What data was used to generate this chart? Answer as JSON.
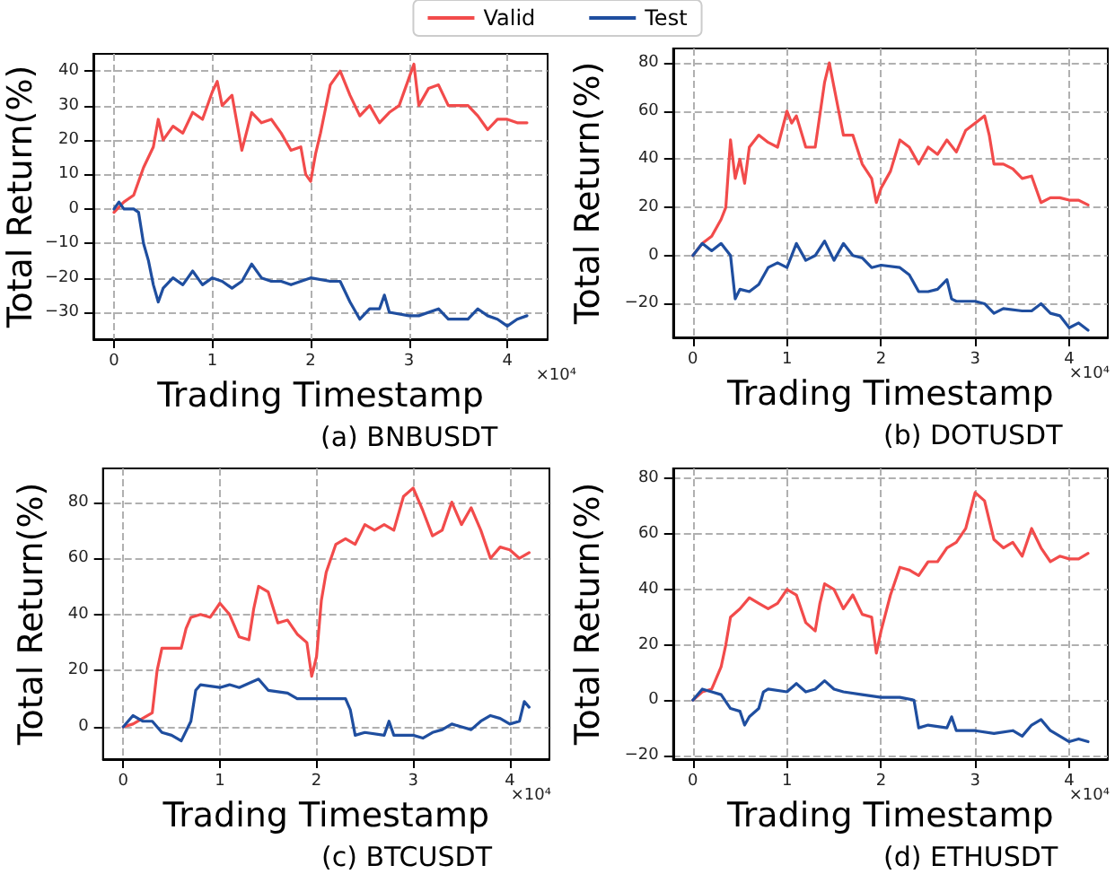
{
  "chart_data": [
    {
      "type": "line",
      "title": "(a) BNBUSDT",
      "xlabel": "Trading Timestamp",
      "ylabel": "Total Return(%)",
      "annotations": [
        "×10⁴"
      ],
      "xlim": [
        -0.21,
        4.41
      ],
      "xticks": [
        0,
        1,
        2,
        3,
        4
      ],
      "ylim": [
        -37.8,
        45
      ],
      "yticks": [
        -30,
        -20,
        -10,
        0,
        10,
        20,
        30,
        40
      ],
      "grid": true,
      "legend": "top",
      "series": [
        {
          "name": "Valid",
          "color": "#f24b4b",
          "x": [
            0,
            0.1,
            0.2,
            0.3,
            0.4,
            0.45,
            0.5,
            0.6,
            0.7,
            0.8,
            0.9,
            1.0,
            1.05,
            1.1,
            1.2,
            1.3,
            1.4,
            1.5,
            1.6,
            1.7,
            1.8,
            1.9,
            1.95,
            2.0,
            2.05,
            2.1,
            2.2,
            2.3,
            2.4,
            2.5,
            2.6,
            2.7,
            2.8,
            2.9,
            3.0,
            3.05,
            3.1,
            3.2,
            3.3,
            3.4,
            3.5,
            3.6,
            3.7,
            3.8,
            3.9,
            4.0,
            4.1,
            4.2
          ],
          "values": [
            -1,
            2,
            4,
            12,
            18,
            26,
            20,
            24,
            22,
            28,
            26,
            34,
            37,
            30,
            33,
            17,
            28,
            25,
            26,
            22,
            17,
            18,
            10,
            8,
            16,
            22,
            36,
            40,
            33,
            27,
            30,
            25,
            28,
            30,
            38,
            42,
            30,
            35,
            36,
            30,
            30,
            30,
            27,
            23,
            26,
            26,
            25,
            25
          ]
        },
        {
          "name": "Test",
          "color": "#1f4e9f",
          "x": [
            0,
            0.05,
            0.1,
            0.2,
            0.25,
            0.3,
            0.35,
            0.4,
            0.45,
            0.5,
            0.6,
            0.7,
            0.8,
            0.9,
            1.0,
            1.1,
            1.2,
            1.3,
            1.4,
            1.5,
            1.6,
            1.7,
            1.8,
            2.0,
            2.2,
            2.3,
            2.4,
            2.5,
            2.6,
            2.7,
            2.75,
            2.8,
            3.0,
            3.1,
            3.3,
            3.4,
            3.6,
            3.7,
            3.8,
            3.9,
            4.0,
            4.1,
            4.2
          ],
          "values": [
            0,
            2,
            0,
            0,
            -1,
            -10,
            -15,
            -22,
            -27,
            -23,
            -20,
            -22,
            -18,
            -22,
            -20,
            -21,
            -23,
            -21,
            -16,
            -20,
            -21,
            -21,
            -22,
            -20,
            -21,
            -21,
            -27,
            -32,
            -29,
            -29,
            -25,
            -30,
            -31,
            -31,
            -29,
            -32,
            -32,
            -29,
            -31,
            -32,
            -34,
            -32,
            -31
          ]
        }
      ]
    },
    {
      "type": "line",
      "title": "(b) DOTUSDT",
      "xlabel": "Trading Timestamp",
      "ylabel": "Total Return(%)",
      "annotations": [
        "×10⁴"
      ],
      "xlim": [
        -0.21,
        4.41
      ],
      "xticks": [
        0,
        1,
        2,
        3,
        4
      ],
      "ylim": [
        -34,
        86
      ],
      "yticks": [
        -20,
        0,
        20,
        40,
        60,
        80
      ],
      "grid": true,
      "series": [
        {
          "color": "#f24b4b",
          "x": [
            0,
            0.1,
            0.2,
            0.3,
            0.35,
            0.4,
            0.45,
            0.5,
            0.55,
            0.6,
            0.7,
            0.8,
            0.9,
            1.0,
            1.05,
            1.1,
            1.2,
            1.3,
            1.4,
            1.45,
            1.5,
            1.6,
            1.7,
            1.8,
            1.9,
            1.95,
            2.0,
            2.1,
            2.2,
            2.3,
            2.4,
            2.5,
            2.6,
            2.7,
            2.8,
            2.9,
            3.0,
            3.1,
            3.15,
            3.2,
            3.3,
            3.4,
            3.5,
            3.6,
            3.7,
            3.8,
            3.9,
            4.0,
            4.1,
            4.2
          ],
          "values": [
            0,
            5,
            8,
            15,
            20,
            48,
            32,
            40,
            30,
            45,
            50,
            47,
            45,
            60,
            55,
            58,
            45,
            45,
            72,
            80,
            70,
            50,
            50,
            38,
            32,
            22,
            28,
            35,
            48,
            45,
            38,
            45,
            42,
            48,
            43,
            52,
            55,
            58,
            50,
            38,
            38,
            36,
            32,
            33,
            22,
            24,
            24,
            23,
            23,
            21
          ]
        },
        {
          "color": "#1f4e9f",
          "x": [
            0,
            0.1,
            0.2,
            0.3,
            0.4,
            0.45,
            0.5,
            0.6,
            0.7,
            0.8,
            0.9,
            1.0,
            1.1,
            1.2,
            1.3,
            1.4,
            1.5,
            1.6,
            1.7,
            1.8,
            1.9,
            2.0,
            2.2,
            2.3,
            2.4,
            2.5,
            2.6,
            2.7,
            2.75,
            2.8,
            3.0,
            3.1,
            3.2,
            3.3,
            3.5,
            3.6,
            3.7,
            3.8,
            3.9,
            4.0,
            4.1,
            4.2
          ],
          "values": [
            0,
            5,
            2,
            5,
            0,
            -18,
            -14,
            -15,
            -12,
            -5,
            -3,
            -5,
            5,
            -2,
            0,
            6,
            -2,
            5,
            0,
            -1,
            -5,
            -4,
            -5,
            -8,
            -15,
            -15,
            -14,
            -10,
            -18,
            -19,
            -19,
            -20,
            -24,
            -22,
            -23,
            -23,
            -20,
            -24,
            -25,
            -30,
            -28,
            -31
          ]
        }
      ]
    },
    {
      "type": "line",
      "title": "(c) BTCUSDT",
      "xlabel": "Trading Timestamp",
      "ylabel": "Total Return(%)",
      "annotations": [
        "×10⁴"
      ],
      "xlim": [
        -0.21,
        4.41
      ],
      "xticks": [
        0,
        1,
        2,
        3,
        4
      ],
      "ylim": [
        -11.5,
        92
      ],
      "yticks": [
        0,
        20,
        40,
        60,
        80
      ],
      "grid": true,
      "series": [
        {
          "color": "#f24b4b",
          "x": [
            0,
            0.1,
            0.2,
            0.3,
            0.35,
            0.4,
            0.5,
            0.6,
            0.65,
            0.7,
            0.8,
            0.9,
            1.0,
            1.1,
            1.2,
            1.3,
            1.35,
            1.4,
            1.5,
            1.6,
            1.7,
            1.8,
            1.9,
            1.95,
            2.0,
            2.05,
            2.1,
            2.2,
            2.3,
            2.4,
            2.5,
            2.6,
            2.7,
            2.8,
            2.9,
            3.0,
            3.1,
            3.2,
            3.3,
            3.4,
            3.5,
            3.6,
            3.7,
            3.8,
            3.9,
            4.0,
            4.1,
            4.2
          ],
          "values": [
            0,
            1,
            3,
            5,
            20,
            28,
            28,
            28,
            35,
            39,
            40,
            39,
            44,
            40,
            32,
            31,
            42,
            50,
            48,
            37,
            38,
            33,
            30,
            18,
            25,
            45,
            55,
            65,
            67,
            65,
            72,
            70,
            72,
            70,
            82,
            85,
            77,
            68,
            70,
            80,
            72,
            78,
            70,
            60,
            64,
            63,
            60,
            62
          ]
        },
        {
          "color": "#1f4e9f",
          "x": [
            0,
            0.1,
            0.2,
            0.3,
            0.4,
            0.5,
            0.6,
            0.7,
            0.75,
            0.8,
            1.0,
            1.1,
            1.2,
            1.4,
            1.5,
            1.7,
            1.8,
            2.0,
            2.2,
            2.3,
            2.35,
            2.4,
            2.5,
            2.7,
            2.75,
            2.8,
            3.0,
            3.1,
            3.2,
            3.3,
            3.4,
            3.5,
            3.6,
            3.7,
            3.8,
            3.9,
            4.0,
            4.1,
            4.15,
            4.2
          ],
          "values": [
            0,
            4,
            2,
            2,
            -2,
            -3,
            -5,
            2,
            13,
            15,
            14,
            15,
            14,
            17,
            13,
            12,
            10,
            10,
            10,
            10,
            6,
            -3,
            -2,
            -3,
            2,
            -3,
            -3,
            -4,
            -2,
            -1,
            1,
            0,
            -1,
            2,
            4,
            3,
            1,
            2,
            9,
            7
          ]
        }
      ]
    },
    {
      "type": "line",
      "title": "(d) ETHUSDT",
      "xlabel": "Trading Timestamp",
      "ylabel": "Total Return(%)",
      "annotations": [
        "×10⁴"
      ],
      "xlim": [
        -0.21,
        4.41
      ],
      "xticks": [
        0,
        1,
        2,
        3,
        4
      ],
      "ylim": [
        -21.3,
        83.7
      ],
      "yticks": [
        -20,
        0,
        20,
        40,
        60,
        80
      ],
      "grid": true,
      "series": [
        {
          "color": "#f24b4b",
          "x": [
            0,
            0.1,
            0.2,
            0.3,
            0.35,
            0.4,
            0.5,
            0.6,
            0.7,
            0.8,
            0.9,
            1.0,
            1.1,
            1.2,
            1.3,
            1.35,
            1.4,
            1.5,
            1.6,
            1.7,
            1.8,
            1.9,
            1.95,
            2.0,
            2.1,
            2.2,
            2.3,
            2.4,
            2.5,
            2.6,
            2.7,
            2.8,
            2.9,
            3.0,
            3.1,
            3.2,
            3.3,
            3.4,
            3.5,
            3.6,
            3.7,
            3.8,
            3.9,
            4.0,
            4.1,
            4.2
          ],
          "values": [
            0,
            3,
            4,
            12,
            20,
            30,
            33,
            37,
            35,
            33,
            35,
            40,
            38,
            28,
            25,
            35,
            42,
            40,
            33,
            38,
            31,
            30,
            17,
            25,
            38,
            48,
            47,
            45,
            50,
            50,
            55,
            57,
            62,
            75,
            72,
            58,
            55,
            57,
            52,
            62,
            55,
            50,
            52,
            51,
            51,
            53
          ]
        },
        {
          "color": "#1f4e9f",
          "x": [
            0,
            0.1,
            0.2,
            0.3,
            0.4,
            0.5,
            0.55,
            0.6,
            0.7,
            0.75,
            0.8,
            1.0,
            1.1,
            1.2,
            1.3,
            1.4,
            1.5,
            1.6,
            1.8,
            2.0,
            2.2,
            2.35,
            2.4,
            2.5,
            2.7,
            2.75,
            2.8,
            3.0,
            3.2,
            3.4,
            3.5,
            3.6,
            3.7,
            3.8,
            3.9,
            4.0,
            4.1,
            4.2
          ],
          "values": [
            0,
            4,
            3,
            2,
            -3,
            -4,
            -9,
            -6,
            -3,
            3,
            4,
            3,
            6,
            3,
            4,
            7,
            4,
            3,
            2,
            1,
            1,
            0,
            -10,
            -9,
            -10,
            -6,
            -11,
            -11,
            -12,
            -11,
            -13,
            -9,
            -7,
            -11,
            -13,
            -15,
            -14,
            -15
          ]
        }
      ]
    }
  ]
}
